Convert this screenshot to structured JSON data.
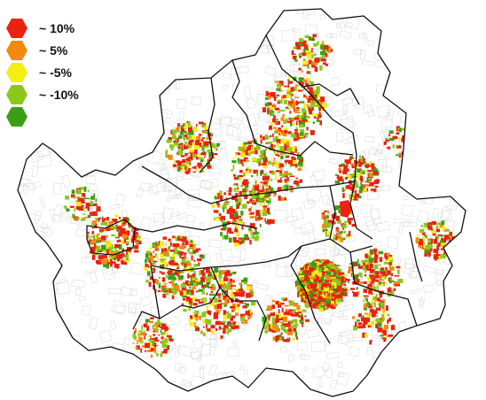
{
  "legend": {
    "items": [
      {
        "label": "~ 10%",
        "color": "#e8230f"
      },
      {
        "label": "~ 5%",
        "color": "#f28a10"
      },
      {
        "label": "~ -5%",
        "color": "#f2ef12"
      },
      {
        "label": "~ -10%",
        "color": "#8cc81a"
      },
      {
        "label": "",
        "color": "#3c9e14"
      }
    ]
  },
  "map": {
    "background": "#ffffff",
    "boundary_color": "#111111",
    "parcel_outline_color": "#d6d6d6",
    "change_colors": [
      "#e8230f",
      "#f28a10",
      "#f2ef12",
      "#8cc81a",
      "#3c9e14"
    ]
  }
}
